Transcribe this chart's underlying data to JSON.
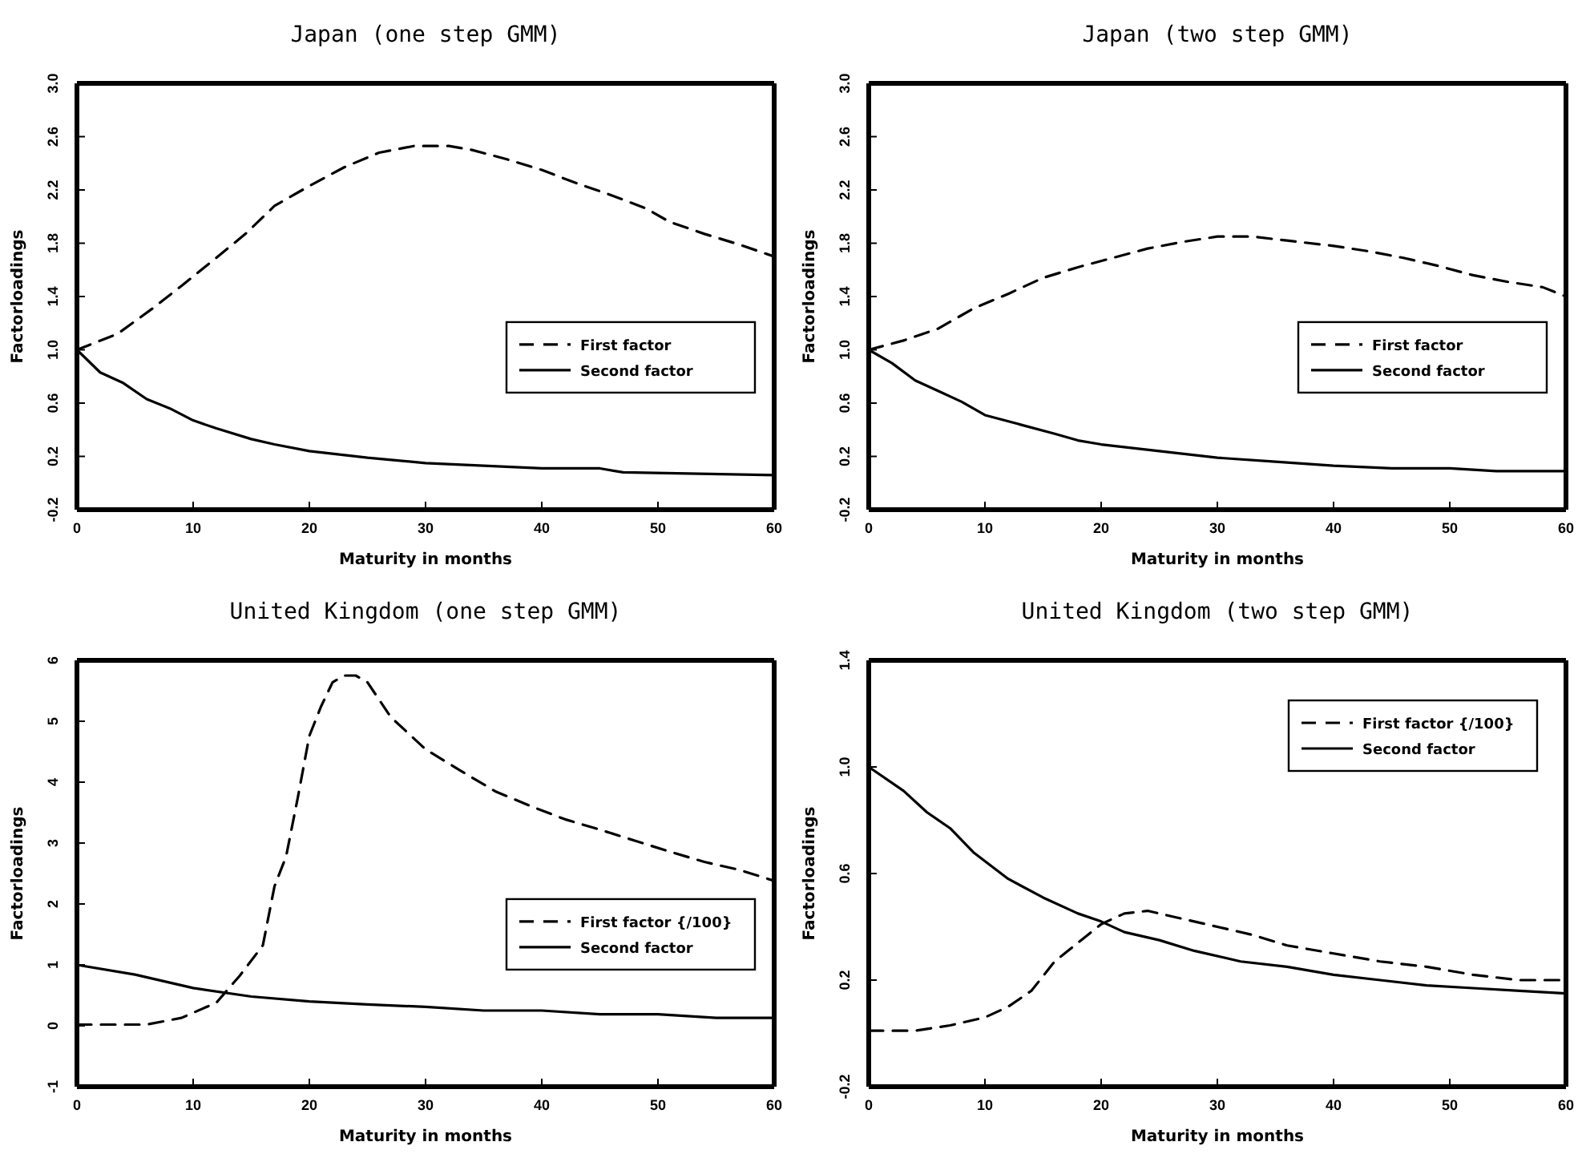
{
  "chart_data": [
    {
      "type": "line",
      "title": "Japan (one step GMM)",
      "xlabel": "Maturity in months",
      "ylabel": "Factorloadings",
      "xlim": [
        0,
        60
      ],
      "xticks": [
        0,
        10,
        20,
        30,
        40,
        50,
        60
      ],
      "ylim": [
        -0.2,
        3.0
      ],
      "yticks": [
        {
          "value": -0.2,
          "label": "-0.2"
        },
        0.2,
        0.6,
        {
          "value": 1.0,
          "label": "1.0"
        },
        1.4,
        1.8,
        2.2,
        2.6,
        {
          "value": 3.0,
          "label": "3.0"
        }
      ],
      "grid": false,
      "legend": "right",
      "series": [
        {
          "name": "First factor",
          "color": "#000000",
          "line_style": "dashed",
          "x": [
            0,
            3.5,
            6.5,
            9,
            11.7,
            14.5,
            17,
            20,
            23,
            26,
            29,
            32,
            34,
            37,
            40,
            43,
            46,
            49,
            51,
            54,
            57,
            60
          ],
          "values": [
            1.0,
            1.12,
            1.31,
            1.48,
            1.67,
            1.87,
            2.08,
            2.23,
            2.37,
            2.48,
            2.53,
            2.53,
            2.5,
            2.43,
            2.35,
            2.25,
            2.16,
            2.06,
            1.96,
            1.87,
            1.79,
            1.7
          ]
        },
        {
          "name": "Second factor",
          "color": "#000000",
          "line_style": "solid",
          "x": [
            0,
            2,
            4,
            6,
            8,
            10,
            12,
            15,
            17,
            20,
            25,
            30,
            35,
            40,
            45,
            47,
            60
          ],
          "values": [
            1.0,
            0.83,
            0.75,
            0.63,
            0.56,
            0.47,
            0.41,
            0.33,
            0.29,
            0.24,
            0.19,
            0.15,
            0.13,
            0.11,
            0.11,
            0.08,
            0.06
          ]
        }
      ]
    },
    {
      "type": "line",
      "title": "Japan (two step GMM)",
      "xlabel": "Maturity in months",
      "ylabel": "Factorloadings",
      "xlim": [
        0,
        60
      ],
      "xticks": [
        0,
        10,
        20,
        30,
        40,
        50,
        60
      ],
      "ylim": [
        -0.2,
        3.0
      ],
      "yticks": [
        {
          "value": -0.2,
          "label": "-0.2"
        },
        0.2,
        0.6,
        {
          "value": 1.0,
          "label": "1.0"
        },
        1.4,
        1.8,
        2.2,
        2.6,
        {
          "value": 3.0,
          "label": "3.0"
        }
      ],
      "grid": false,
      "legend": "right",
      "series": [
        {
          "name": "First factor",
          "color": "#000000",
          "line_style": "dashed",
          "x": [
            0,
            3,
            6,
            9,
            12,
            15,
            18,
            21,
            24,
            27,
            30,
            33,
            36,
            40,
            43,
            46,
            49,
            52,
            55,
            58,
            60
          ],
          "values": [
            1.0,
            1.07,
            1.16,
            1.31,
            1.42,
            1.54,
            1.62,
            1.69,
            1.76,
            1.81,
            1.85,
            1.85,
            1.82,
            1.78,
            1.74,
            1.69,
            1.63,
            1.56,
            1.51,
            1.47,
            1.4
          ]
        },
        {
          "name": "Second factor",
          "color": "#000000",
          "line_style": "solid",
          "x": [
            0,
            2,
            4,
            6,
            8,
            10,
            13,
            16,
            18,
            20,
            25,
            30,
            35,
            40,
            45,
            50,
            54,
            60
          ],
          "values": [
            1.0,
            0.9,
            0.77,
            0.69,
            0.61,
            0.51,
            0.44,
            0.37,
            0.32,
            0.29,
            0.24,
            0.19,
            0.16,
            0.13,
            0.11,
            0.11,
            0.09,
            0.09
          ]
        }
      ]
    },
    {
      "type": "line",
      "title": "United Kingdom (one step GMM)",
      "xlabel": "Maturity in months",
      "ylabel": "Factorloadings",
      "xlim": [
        0,
        60
      ],
      "xticks": [
        0,
        10,
        20,
        30,
        40,
        50,
        60
      ],
      "ylim": [
        -1,
        6
      ],
      "yticks": [
        -1,
        0,
        1,
        2,
        3,
        4,
        5,
        6
      ],
      "grid": false,
      "legend": "right",
      "series": [
        {
          "name": "First factor {/100}",
          "color": "#000000",
          "line_style": "dashed",
          "x": [
            0,
            6,
            9,
            12,
            14,
            16,
            17,
            18,
            19,
            20,
            21,
            22,
            23,
            24,
            25,
            27,
            30,
            33,
            36,
            39,
            42,
            45,
            48,
            51,
            54,
            57,
            60
          ],
          "values": [
            0.02,
            0.02,
            0.13,
            0.38,
            0.82,
            1.32,
            2.29,
            2.78,
            3.74,
            4.76,
            5.24,
            5.64,
            5.75,
            5.75,
            5.64,
            5.07,
            4.54,
            4.19,
            3.85,
            3.61,
            3.39,
            3.22,
            3.04,
            2.86,
            2.69,
            2.56,
            2.38
          ]
        },
        {
          "name": "Second factor",
          "color": "#000000",
          "line_style": "solid",
          "x": [
            0,
            5,
            10,
            15,
            20,
            25,
            30,
            35,
            40,
            45,
            50,
            55,
            60
          ],
          "values": [
            1.0,
            0.84,
            0.62,
            0.48,
            0.4,
            0.35,
            0.31,
            0.25,
            0.25,
            0.19,
            0.19,
            0.13,
            0.13
          ]
        }
      ]
    },
    {
      "type": "line",
      "title": "United Kingdom (two step GMM)",
      "xlabel": "Maturity in months",
      "ylabel": "Factorloadings",
      "xlim": [
        0,
        60
      ],
      "xticks": [
        0,
        10,
        20,
        30,
        40,
        50,
        60
      ],
      "ylim": [
        -0.2,
        1.4
      ],
      "yticks": [
        {
          "value": -0.2,
          "label": "-0.2"
        },
        0.2,
        0.6,
        {
          "value": 1.0,
          "label": "1.0"
        },
        1.4
      ],
      "grid": false,
      "legend": "top right",
      "series": [
        {
          "name": "First factor {/100}",
          "color": "#000000",
          "line_style": "dashed",
          "x": [
            0,
            4,
            7,
            10,
            12,
            14,
            16,
            18,
            20,
            22,
            24,
            27,
            30,
            33,
            36,
            40,
            44,
            48,
            52,
            56,
            60
          ],
          "values": [
            0.01,
            0.01,
            0.03,
            0.06,
            0.1,
            0.16,
            0.27,
            0.34,
            0.41,
            0.45,
            0.46,
            0.43,
            0.4,
            0.37,
            0.33,
            0.3,
            0.27,
            0.25,
            0.22,
            0.2,
            0.2
          ]
        },
        {
          "name": "Second factor",
          "color": "#000000",
          "line_style": "solid",
          "x": [
            0,
            3,
            5,
            7,
            9,
            12,
            15,
            18,
            20,
            22,
            25,
            28,
            32,
            36,
            40,
            44,
            48,
            52,
            56,
            60
          ],
          "values": [
            1.0,
            0.91,
            0.83,
            0.77,
            0.68,
            0.58,
            0.51,
            0.45,
            0.42,
            0.38,
            0.35,
            0.31,
            0.27,
            0.25,
            0.22,
            0.2,
            0.18,
            0.17,
            0.16,
            0.15
          ]
        }
      ]
    }
  ]
}
